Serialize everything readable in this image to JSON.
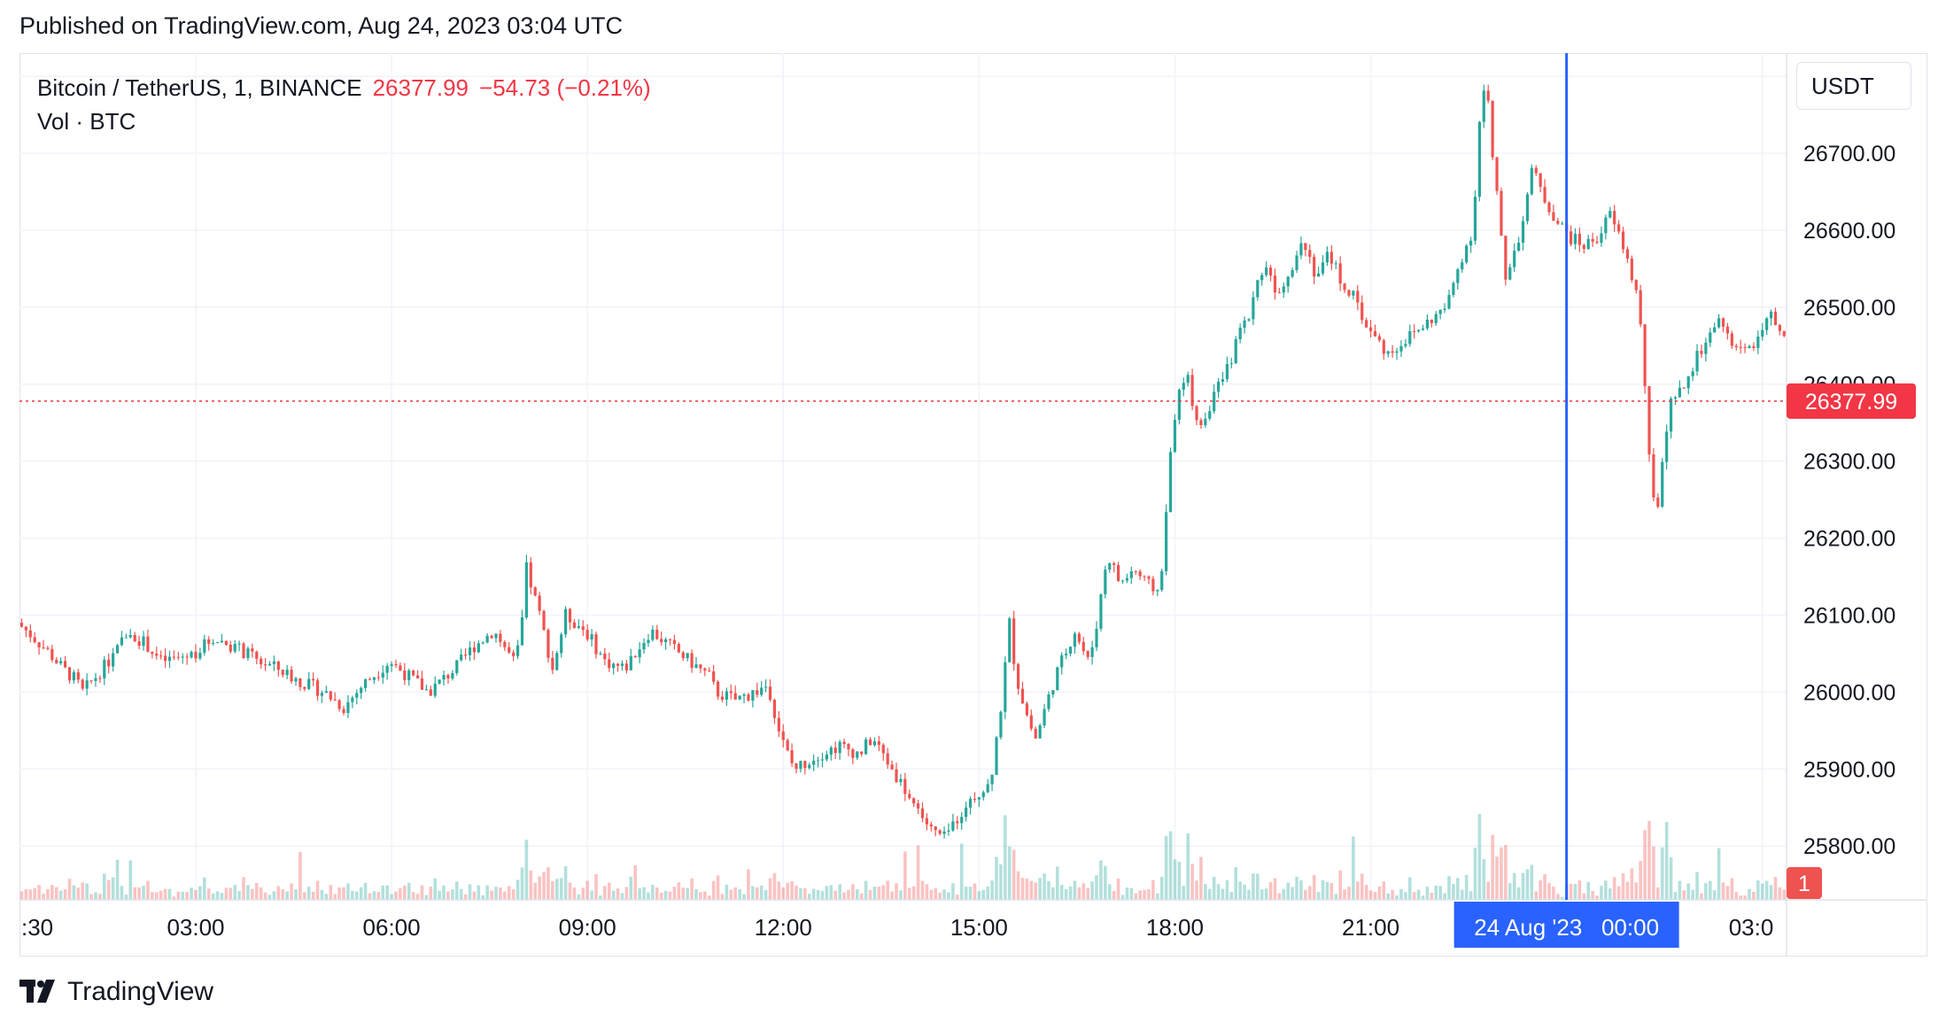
{
  "header": {
    "published": "Published on TradingView.com, Aug 24, 2023 03:04 UTC"
  },
  "legend": {
    "symbol": "Bitcoin / TetherUS, 1, BINANCE",
    "last_price": "26377.99",
    "change": "−54.73 (−0.21%)",
    "volume_label": "Vol · BTC"
  },
  "currency_button": "USDT",
  "crosshair": {
    "label": "24 Aug '23   00:00",
    "x_hours": 24.0
  },
  "price_label": "26377.99",
  "volume_badge": "1",
  "colors": {
    "up": "#26a69a",
    "down": "#ef5350",
    "last_price": "#f23645",
    "crosshair": "#2962ff"
  },
  "brand": {
    "name": "TradingView",
    "logo_icon": "tradingview-logo-icon"
  },
  "chart_data": {
    "type": "candlestick",
    "interval": "1 minute",
    "x_unit": "hours since Aug 23 2023 00:00 UTC",
    "y_axis_ticks": [
      "26800.00",
      "26700.00",
      "26600.00",
      "26500.00",
      "26400.00",
      "26300.00",
      "26200.00",
      "26100.00",
      "26000.00",
      "25900.00",
      "25800.00"
    ],
    "x_axis_ticks": [
      ":30",
      "03:00",
      "06:00",
      "09:00",
      "12:00",
      "15:00",
      "18:00",
      "21:00",
      "03:0"
    ],
    "x_axis_tick_hours": [
      0.5,
      3,
      6,
      9,
      12,
      15,
      18,
      21,
      27
    ],
    "ylim": [
      25730,
      26830
    ],
    "xlim": [
      0.3,
      27.37
    ],
    "last_price": 26377.99,
    "grid": true,
    "price_path": [
      [
        0.3,
        26090
      ],
      [
        0.5,
        26075
      ],
      [
        0.8,
        26050
      ],
      [
        1.0,
        26030
      ],
      [
        1.2,
        26015
      ],
      [
        1.3,
        26000
      ],
      [
        1.5,
        26020
      ],
      [
        1.8,
        26050
      ],
      [
        2.0,
        26080
      ],
      [
        2.3,
        26060
      ],
      [
        2.5,
        26040
      ],
      [
        2.8,
        26045
      ],
      [
        3.0,
        26050
      ],
      [
        3.3,
        26070
      ],
      [
        3.6,
        26060
      ],
      [
        4.0,
        26040
      ],
      [
        4.3,
        26030
      ],
      [
        4.6,
        26015
      ],
      [
        5.0,
        26000
      ],
      [
        5.3,
        25980
      ],
      [
        5.6,
        26010
      ],
      [
        6.0,
        26040
      ],
      [
        6.3,
        26020
      ],
      [
        6.6,
        26000
      ],
      [
        7.0,
        26030
      ],
      [
        7.3,
        26060
      ],
      [
        7.6,
        26080
      ],
      [
        7.9,
        26040
      ],
      [
        8.0,
        26060
      ],
      [
        8.1,
        26160
      ],
      [
        8.3,
        26100
      ],
      [
        8.5,
        26030
      ],
      [
        8.7,
        26100
      ],
      [
        9.0,
        26080
      ],
      [
        9.3,
        26040
      ],
      [
        9.6,
        26030
      ],
      [
        10.0,
        26080
      ],
      [
        10.3,
        26060
      ],
      [
        10.6,
        26040
      ],
      [
        10.9,
        26020
      ],
      [
        11.0,
        26000
      ],
      [
        11.3,
        25990
      ],
      [
        11.6,
        26000
      ],
      [
        11.8,
        26010
      ],
      [
        12.0,
        25940
      ],
      [
        12.2,
        25900
      ],
      [
        12.4,
        25910
      ],
      [
        12.6,
        25920
      ],
      [
        12.9,
        25930
      ],
      [
        13.2,
        25920
      ],
      [
        13.4,
        25940
      ],
      [
        13.7,
        25900
      ],
      [
        14.0,
        25860
      ],
      [
        14.3,
        25820
      ],
      [
        14.5,
        25810
      ],
      [
        14.8,
        25850
      ],
      [
        15.0,
        25870
      ],
      [
        15.2,
        25880
      ],
      [
        15.4,
        26000
      ],
      [
        15.5,
        26090
      ],
      [
        15.6,
        26020
      ],
      [
        15.8,
        25960
      ],
      [
        15.9,
        25940
      ],
      [
        16.2,
        26020
      ],
      [
        16.5,
        26080
      ],
      [
        16.7,
        26040
      ],
      [
        16.8,
        26070
      ],
      [
        17.0,
        26180
      ],
      [
        17.2,
        26140
      ],
      [
        17.4,
        26160
      ],
      [
        17.6,
        26140
      ],
      [
        17.8,
        26130
      ],
      [
        17.9,
        26230
      ],
      [
        18.0,
        26350
      ],
      [
        18.2,
        26420
      ],
      [
        18.3,
        26380
      ],
      [
        18.4,
        26340
      ],
      [
        18.6,
        26380
      ],
      [
        18.8,
        26410
      ],
      [
        19.0,
        26460
      ],
      [
        19.2,
        26500
      ],
      [
        19.4,
        26560
      ],
      [
        19.6,
        26520
      ],
      [
        19.8,
        26550
      ],
      [
        20.0,
        26590
      ],
      [
        20.2,
        26540
      ],
      [
        20.4,
        26570
      ],
      [
        20.6,
        26530
      ],
      [
        20.8,
        26510
      ],
      [
        21.0,
        26470
      ],
      [
        21.3,
        26440
      ],
      [
        21.6,
        26460
      ],
      [
        21.9,
        26480
      ],
      [
        22.2,
        26500
      ],
      [
        22.4,
        26560
      ],
      [
        22.6,
        26600
      ],
      [
        22.7,
        26740
      ],
      [
        22.8,
        26800
      ],
      [
        22.9,
        26690
      ],
      [
        23.0,
        26620
      ],
      [
        23.1,
        26540
      ],
      [
        23.3,
        26590
      ],
      [
        23.5,
        26680
      ],
      [
        23.7,
        26640
      ],
      [
        23.9,
        26610
      ],
      [
        24.1,
        26590
      ],
      [
        24.3,
        26580
      ],
      [
        24.5,
        26590
      ],
      [
        24.7,
        26620
      ],
      [
        24.9,
        26580
      ],
      [
        25.1,
        26520
      ],
      [
        25.2,
        26450
      ],
      [
        25.3,
        26300
      ],
      [
        25.4,
        26220
      ],
      [
        25.5,
        26300
      ],
      [
        25.6,
        26370
      ],
      [
        25.8,
        26390
      ],
      [
        26.0,
        26430
      ],
      [
        26.2,
        26460
      ],
      [
        26.4,
        26480
      ],
      [
        26.6,
        26450
      ],
      [
        26.8,
        26440
      ],
      [
        27.0,
        26470
      ],
      [
        27.2,
        26490
      ],
      [
        27.3,
        26460
      ]
    ]
  }
}
